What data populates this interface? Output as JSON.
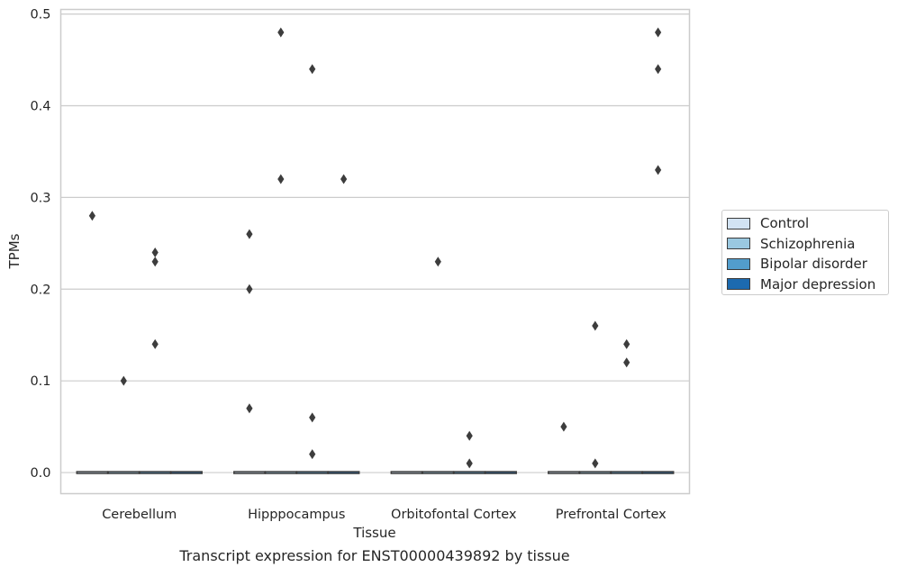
{
  "chart_data": {
    "type": "box",
    "title": "Transcript expression for ENST00000439892 by tissue",
    "xlabel": "Tissue",
    "ylabel": "TPMs",
    "ylim": [
      -0.023,
      0.505
    ],
    "yticks": [
      "0.0",
      "0.1",
      "0.2",
      "0.3",
      "0.4",
      "0.5"
    ],
    "grid": true,
    "legend_position": "right",
    "categories": [
      "Cerebellum",
      "Hipppocampus",
      "Orbitofontal Cortex",
      "Prefrontal Cortex"
    ],
    "series": [
      {
        "name": "Control",
        "color": "#d2e3f3",
        "boxes": [
          {
            "median": 0
          },
          {
            "median": 0
          },
          {
            "median": 0
          },
          {
            "median": 0
          }
        ],
        "outliers": [
          [
            0.28
          ],
          [
            0.26,
            0.2,
            0.07
          ],
          [],
          [
            0.05
          ]
        ]
      },
      {
        "name": "Schizophrenia",
        "color": "#9ac8e0",
        "boxes": [
          {
            "median": 0
          },
          {
            "median": 0
          },
          {
            "median": 0
          },
          {
            "median": 0
          }
        ],
        "outliers": [
          [
            0.1
          ],
          [
            0.48,
            0.32
          ],
          [
            0.23
          ],
          [
            0.16,
            0.01
          ]
        ]
      },
      {
        "name": "Bipolar disorder",
        "color": "#529dcc",
        "boxes": [
          {
            "median": 0
          },
          {
            "median": 0
          },
          {
            "median": 0
          },
          {
            "median": 0
          }
        ],
        "outliers": [
          [
            0.24,
            0.23,
            0.14
          ],
          [
            0.44,
            0.06,
            0.02
          ],
          [
            0.04,
            0.01
          ],
          [
            0.14,
            0.12
          ]
        ]
      },
      {
        "name": "Major depression",
        "color": "#1c6aaf",
        "boxes": [
          {
            "median": 0
          },
          {
            "median": 0
          },
          {
            "median": 0
          },
          {
            "median": 0
          }
        ],
        "outliers": [
          [],
          [
            0.32
          ],
          [],
          [
            0.48,
            0.44,
            0.33
          ]
        ]
      }
    ]
  }
}
